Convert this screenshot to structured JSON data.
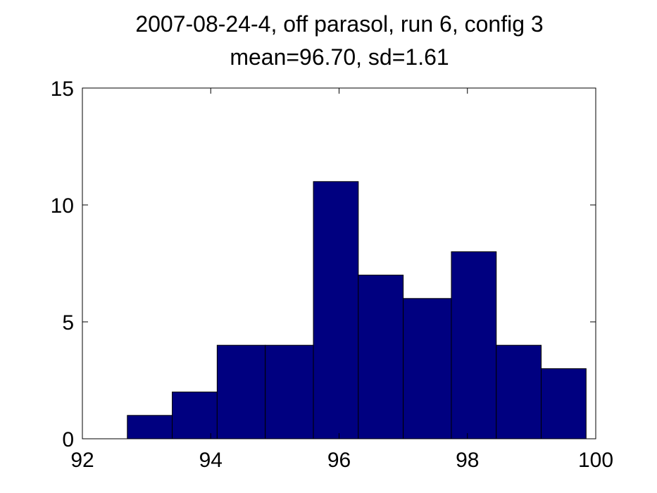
{
  "chart_data": {
    "type": "bar",
    "title": "2007-08-24-4, off parasol, run 6, config 3",
    "subtitle": "mean=96.70, sd=1.61",
    "xlabel": "",
    "ylabel": "",
    "xlim": [
      92,
      100
    ],
    "ylim": [
      0,
      15
    ],
    "x_ticks": [
      "92",
      "94",
      "96",
      "98",
      "100"
    ],
    "y_ticks": [
      "0",
      "5",
      "10",
      "15"
    ],
    "bin_edges": [
      92.7,
      93.4,
      94.1,
      94.85,
      95.6,
      96.3,
      97.0,
      97.75,
      98.45,
      99.15,
      99.85
    ],
    "values": [
      1,
      2,
      4,
      4,
      11,
      7,
      6,
      8,
      4,
      3
    ],
    "bar_color": "#000080",
    "grid": false
  }
}
